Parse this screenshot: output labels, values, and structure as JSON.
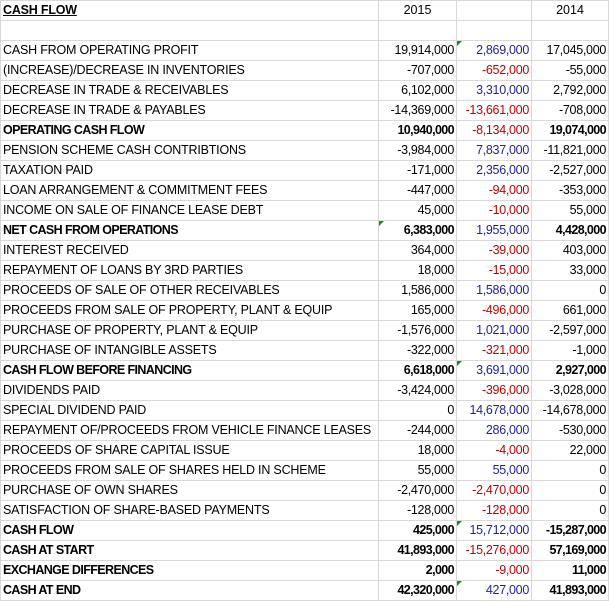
{
  "header": {
    "title": "CASH FLOW",
    "year_current": "2015",
    "year_prior": "2014"
  },
  "rows": [
    {
      "label": "CASH FROM OPERATING PROFIT",
      "current": "19,914,000",
      "diff": "2,869,000",
      "prior": "17,045,000",
      "bold": false
    },
    {
      "label": "(INCREASE)/DECREASE IN INVENTORIES",
      "current": "-707,000",
      "diff": "-652,000",
      "prior": "-55,000",
      "bold": false
    },
    {
      "label": "DECREASE IN TRADE & RECEIVABLES",
      "current": "6,102,000",
      "diff": "3,310,000",
      "prior": "2,792,000",
      "bold": false
    },
    {
      "label": "DECREASE IN TRADE & PAYABLES",
      "current": "-14,369,000",
      "diff": "-13,661,000",
      "prior": "-708,000",
      "bold": false
    },
    {
      "label": "OPERATING CASH FLOW",
      "current": "10,940,000",
      "diff": "-8,134,000",
      "prior": "19,074,000",
      "bold": true
    },
    {
      "label": "PENSION SCHEME CASH CONTRIBTIONS",
      "current": "-3,984,000",
      "diff": "7,837,000",
      "prior": "-11,821,000",
      "bold": false
    },
    {
      "label": "TAXATION PAID",
      "current": "-171,000",
      "diff": "2,356,000",
      "prior": "-2,527,000",
      "bold": false
    },
    {
      "label": "LOAN ARRANGEMENT & COMMITMENT FEES",
      "current": "-447,000",
      "diff": "-94,000",
      "prior": "-353,000",
      "bold": false
    },
    {
      "label": "INCOME ON SALE OF FINANCE LEASE DEBT",
      "current": "45,000",
      "diff": "-10,000",
      "prior": "55,000",
      "bold": false
    },
    {
      "label": "NET CASH FROM OPERATIONS",
      "current": "6,383,000",
      "diff": "1,955,000",
      "prior": "4,428,000",
      "bold": true
    },
    {
      "label": "INTEREST RECEIVED",
      "current": "364,000",
      "diff": "-39,000",
      "prior": "403,000",
      "bold": false
    },
    {
      "label": "REPAYMENT OF LOANS BY 3RD PARTIES",
      "current": "18,000",
      "diff": "-15,000",
      "prior": "33,000",
      "bold": false
    },
    {
      "label": "PROCEEDS OF SALE OF OTHER RECEIVABLES",
      "current": "1,586,000",
      "diff": "1,586,000",
      "prior": "0",
      "bold": false
    },
    {
      "label": "PROCEEDS FROM SALE OF PROPERTY, PLANT & EQUIP",
      "current": "165,000",
      "diff": "-496,000",
      "prior": "661,000",
      "bold": false
    },
    {
      "label": "PURCHASE OF PROPERTY, PLANT & EQUIP",
      "current": "-1,576,000",
      "diff": "1,021,000",
      "prior": "-2,597,000",
      "bold": false
    },
    {
      "label": "PURCHASE OF INTANGIBLE ASSETS",
      "current": "-322,000",
      "diff": "-321,000",
      "prior": "-1,000",
      "bold": false
    },
    {
      "label": "CASH FLOW BEFORE FINANCING",
      "current": "6,618,000",
      "diff": "3,691,000",
      "prior": "2,927,000",
      "bold": true
    },
    {
      "label": "DIVIDENDS PAID",
      "current": "-3,424,000",
      "diff": "-396,000",
      "prior": "-3,028,000",
      "bold": false
    },
    {
      "label": "SPECIAL DIVIDEND PAID",
      "current": "0",
      "diff": "14,678,000",
      "prior": "-14,678,000",
      "bold": false
    },
    {
      "label": "REPAYMENT OF/PROCEEDS FROM VEHICLE FINANCE LEASES",
      "current": "-244,000",
      "diff": "286,000",
      "prior": "-530,000",
      "bold": false
    },
    {
      "label": "PROCEEDS OF SHARE CAPITAL ISSUE",
      "current": "18,000",
      "diff": "-4,000",
      "prior": "22,000",
      "bold": false
    },
    {
      "label": "PROCEEDS FROM SALE OF SHARES HELD IN SCHEME",
      "current": "55,000",
      "diff": "55,000",
      "prior": "0",
      "bold": false
    },
    {
      "label": "PURCHASE OF OWN SHARES",
      "current": "-2,470,000",
      "diff": "-2,470,000",
      "prior": "0",
      "bold": false
    },
    {
      "label": "SATISFACTION OF SHARE-BASED PAYMENTS",
      "current": "-128,000",
      "diff": "-128,000",
      "prior": "0",
      "bold": false
    },
    {
      "label": "CASH FLOW",
      "current": "425,000",
      "diff": "15,712,000",
      "prior": "-15,287,000",
      "bold": true
    },
    {
      "label": "CASH AT START",
      "current": "41,893,000",
      "diff": "-15,276,000",
      "prior": "57,169,000",
      "bold": true
    },
    {
      "label": "EXCHANGE DIFFERENCES",
      "current": "2,000",
      "diff": "-9,000",
      "prior": "11,000",
      "bold": true
    },
    {
      "label": "CASH AT END",
      "current": "42,320,000",
      "diff": "427,000",
      "prior": "41,893,000",
      "bold": true
    }
  ],
  "colors": {
    "positive_diff": "#1f1f9c",
    "negative_diff": "#c00000",
    "gridline": "#d9d9d9",
    "cell_flag": "#1b8a2e"
  }
}
